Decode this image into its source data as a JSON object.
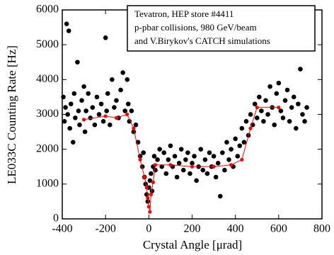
{
  "chart_data": {
    "type": "scatter",
    "xlabel": "Crystal Angle [μrad]",
    "ylabel": "LE033C  Counting Rate [Hz]",
    "annotations": [
      "Tevatron, HEP store #4411",
      "p-pbar collisions, 980 GeV/beam",
      "and V.Birykov's CATCH simulations"
    ],
    "xlim": [
      -400,
      800
    ],
    "ylim": [
      0,
      6000
    ],
    "xticks": [
      -400,
      -200,
      0,
      200,
      400,
      600,
      800
    ],
    "yticks": [
      0,
      1000,
      2000,
      3000,
      4000,
      5000,
      6000
    ],
    "series": [
      {
        "color": "#000000",
        "marker": "dot",
        "x": [
          -395,
          -390,
          -385,
          -380,
          -375,
          -370,
          -365,
          -360,
          -350,
          -345,
          -340,
          -330,
          -325,
          -320,
          -310,
          -300,
          -295,
          -290,
          -280,
          -270,
          -260,
          -250,
          -240,
          -230,
          -220,
          -210,
          -200,
          -195,
          -190,
          -180,
          -170,
          -160,
          -150,
          -140,
          -130,
          -120,
          -110,
          -100,
          -95,
          -90,
          -80,
          -70,
          -60,
          -50,
          -40,
          -30,
          -25,
          -20,
          -15,
          -10,
          -5,
          0,
          5,
          10,
          15,
          20,
          25,
          30,
          40,
          50,
          60,
          70,
          80,
          90,
          100,
          110,
          120,
          130,
          140,
          150,
          160,
          170,
          180,
          190,
          200,
          210,
          220,
          230,
          240,
          250,
          260,
          270,
          280,
          290,
          300,
          310,
          320,
          330,
          340,
          350,
          360,
          370,
          380,
          390,
          400,
          410,
          420,
          430,
          440,
          450,
          460,
          470,
          480,
          490,
          500,
          510,
          520,
          530,
          540,
          550,
          560,
          570,
          580,
          590,
          600,
          610,
          620,
          630,
          640,
          650,
          660,
          670,
          680,
          690,
          700,
          710,
          720,
          730
        ],
        "values": [
          3500,
          2800,
          3200,
          5600,
          3000,
          5400,
          2600,
          3300,
          2200,
          3600,
          2900,
          4500,
          3100,
          2700,
          3400,
          3800,
          2500,
          3100,
          3600,
          2900,
          3200,
          2700,
          3500,
          3000,
          3300,
          2800,
          5200,
          3100,
          3600,
          2700,
          4000,
          3200,
          3400,
          2900,
          3700,
          4200,
          3100,
          4000,
          3300,
          2800,
          3100,
          2500,
          2700,
          2200,
          1800,
          1500,
          1900,
          1200,
          1000,
          700,
          500,
          900,
          1100,
          1300,
          800,
          1500,
          1800,
          1400,
          1700,
          2000,
          1500,
          1900,
          1300,
          1700,
          2100,
          1500,
          1800,
          1200,
          1600,
          2000,
          1400,
          1700,
          1900,
          1300,
          1600,
          1800,
          1100,
          1500,
          2000,
          1400,
          1700,
          1300,
          1900,
          1500,
          1800,
          1200,
          1600,
          650,
          1900,
          1400,
          2200,
          1700,
          2000,
          1500,
          2300,
          1800,
          2100,
          2600,
          2200,
          2800,
          2400,
          3000,
          2700,
          3300,
          2900,
          3500,
          3100,
          2800,
          3400,
          3000,
          3800,
          3200,
          2700,
          3600,
          3900,
          3100,
          2900,
          3400,
          3700,
          2800,
          3200,
          3500,
          2600,
          3300,
          4300,
          3000,
          2800,
          3200
        ]
      },
      {
        "color": "#ff0000",
        "marker": "line",
        "x": [
          -300,
          -200,
          -150,
          -100,
          -70,
          -40,
          -20,
          -10,
          -5,
          0,
          5,
          10,
          20,
          30,
          100,
          200,
          300,
          380,
          430,
          470,
          500,
          600
        ],
        "values": [
          2850,
          2950,
          2900,
          3000,
          2600,
          1700,
          1200,
          900,
          600,
          350,
          200,
          700,
          1050,
          1550,
          1550,
          1500,
          1500,
          1550,
          1700,
          2600,
          3200,
          3200
        ]
      }
    ]
  }
}
